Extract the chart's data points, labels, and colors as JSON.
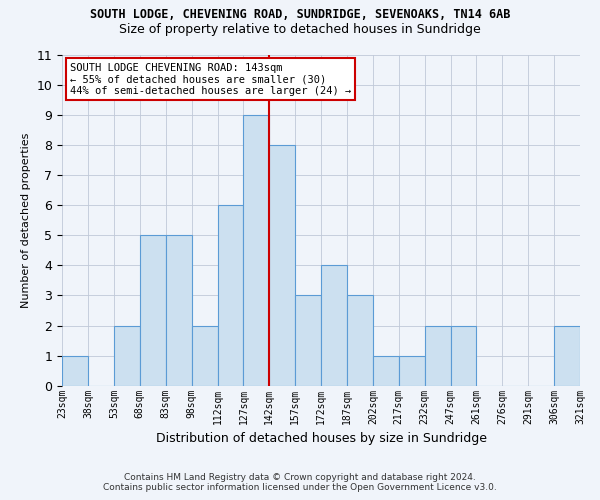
{
  "title": "SOUTH LODGE, CHEVENING ROAD, SUNDRIDGE, SEVENOAKS, TN14 6AB",
  "subtitle": "Size of property relative to detached houses in Sundridge",
  "xlabel": "Distribution of detached houses by size in Sundridge",
  "ylabel": "Number of detached properties",
  "footer_line1": "Contains HM Land Registry data © Crown copyright and database right 2024.",
  "footer_line2": "Contains public sector information licensed under the Open Government Licence v3.0.",
  "bin_labels": [
    "23sqm",
    "38sqm",
    "53sqm",
    "68sqm",
    "83sqm",
    "98sqm",
    "112sqm",
    "127sqm",
    "142sqm",
    "157sqm",
    "172sqm",
    "187sqm",
    "202sqm",
    "217sqm",
    "232sqm",
    "247sqm",
    "261sqm",
    "276sqm",
    "291sqm",
    "306sqm",
    "321sqm"
  ],
  "values": [
    1,
    0,
    2,
    5,
    5,
    2,
    6,
    9,
    8,
    3,
    4,
    3,
    1,
    1,
    2,
    2,
    0,
    0,
    0,
    2
  ],
  "bar_color": "#cce0f0",
  "bar_edge_color": "#5b9bd5",
  "vline_position": 8.0,
  "vline_color": "#cc0000",
  "annotation_text": "SOUTH LODGE CHEVENING ROAD: 143sqm\n← 55% of detached houses are smaller (30)\n44% of semi-detached houses are larger (24) →",
  "annotation_box_color": "#ffffff",
  "annotation_box_edge_color": "#cc0000",
  "ylim": [
    0,
    11
  ],
  "yticks": [
    0,
    1,
    2,
    3,
    4,
    5,
    6,
    7,
    8,
    9,
    10,
    11
  ],
  "background_color": "#f0f4fa",
  "grid_color": "#c0c8d8"
}
